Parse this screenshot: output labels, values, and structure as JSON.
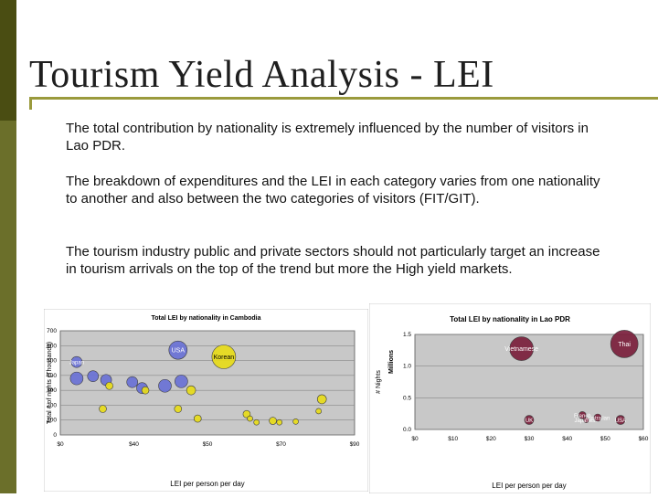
{
  "slide": {
    "title": "Tourism Yield Analysis - LEI",
    "paragraphs": [
      "The total contribution by nationality is extremely influenced by the number of visitors in Lao PDR.",
      "The breakdown of expenditures and the LEI in each category varies from one nationality to another and also between the two categories of visitors (FIT/GIT).",
      "The tourism industry public and private sectors should not particularly target an increase in tourism arrivals on the top of the trend but more the High yield markets."
    ]
  },
  "colors": {
    "sidebar": "#6b6f2a",
    "accent_rule": "#9a9a3c",
    "plot_gray": "#c8c8c8",
    "bubble_blue": "#6a72d6",
    "bubble_yellow": "#e8dc1a",
    "bubble_maroon": "#7a1f3c"
  },
  "chart_data": [
    {
      "type": "scatter",
      "title": "Total LEI by nationality in Cambodia",
      "xlabel": "LEI per person per day",
      "ylabel": "Total # of nights (Thousands)",
      "x_ticks": [
        "$0",
        "$40",
        "$50",
        "$70",
        "$90"
      ],
      "y_ticks": [
        "0",
        "100",
        "200",
        "300",
        "400",
        "500",
        "600",
        "700"
      ],
      "xlim": [
        0,
        90
      ],
      "ylim": [
        0,
        700
      ],
      "grid": true,
      "points": [
        {
          "label": "USA",
          "x": 36,
          "y": 570,
          "r": 10,
          "color": "#6a72d6"
        },
        {
          "label": "Korean",
          "x": 50,
          "y": 525,
          "r": 13,
          "color": "#e8dc1a"
        },
        {
          "label": "Japan",
          "x": 5,
          "y": 490,
          "r": 6,
          "color": "#6a72d6"
        },
        {
          "label": "",
          "x": 5,
          "y": 380,
          "r": 7,
          "color": "#6a72d6"
        },
        {
          "label": "",
          "x": 10,
          "y": 395,
          "r": 6,
          "color": "#6a72d6"
        },
        {
          "label": "",
          "x": 14,
          "y": 370,
          "r": 6,
          "color": "#6a72d6"
        },
        {
          "label": "",
          "x": 22,
          "y": 355,
          "r": 6,
          "color": "#6a72d6"
        },
        {
          "label": "",
          "x": 25,
          "y": 315,
          "r": 6,
          "color": "#6a72d6"
        },
        {
          "label": "",
          "x": 32,
          "y": 330,
          "r": 7,
          "color": "#6a72d6"
        },
        {
          "label": "",
          "x": 37,
          "y": 360,
          "r": 7,
          "color": "#6a72d6"
        },
        {
          "label": "",
          "x": 15,
          "y": 330,
          "r": 4,
          "color": "#e8dc1a"
        },
        {
          "label": "",
          "x": 26,
          "y": 300,
          "r": 4,
          "color": "#e8dc1a"
        },
        {
          "label": "",
          "x": 40,
          "y": 300,
          "r": 5,
          "color": "#e8dc1a"
        },
        {
          "label": "",
          "x": 13,
          "y": 175,
          "r": 4,
          "color": "#e8dc1a"
        },
        {
          "label": "",
          "x": 36,
          "y": 175,
          "r": 4,
          "color": "#e8dc1a"
        },
        {
          "label": "",
          "x": 42,
          "y": 110,
          "r": 4,
          "color": "#e8dc1a"
        },
        {
          "label": "",
          "x": 57,
          "y": 140,
          "r": 4,
          "color": "#e8dc1a"
        },
        {
          "label": "",
          "x": 58,
          "y": 110,
          "r": 3,
          "color": "#e8dc1a"
        },
        {
          "label": "",
          "x": 60,
          "y": 85,
          "r": 3,
          "color": "#e8dc1a"
        },
        {
          "label": "",
          "x": 65,
          "y": 95,
          "r": 4,
          "color": "#e8dc1a"
        },
        {
          "label": "",
          "x": 67,
          "y": 85,
          "r": 3,
          "color": "#e8dc1a"
        },
        {
          "label": "",
          "x": 72,
          "y": 90,
          "r": 3,
          "color": "#e8dc1a"
        },
        {
          "label": "",
          "x": 80,
          "y": 240,
          "r": 5,
          "color": "#e8dc1a"
        },
        {
          "label": "",
          "x": 79,
          "y": 160,
          "r": 3,
          "color": "#e8dc1a"
        }
      ]
    },
    {
      "type": "scatter",
      "title": "Total LEI by nationality in Lao PDR",
      "xlabel": "LEI per person per day",
      "ylabel": "# Nights",
      "yunit": "Millions",
      "x_ticks": [
        "$0",
        "$10",
        "$20",
        "$30",
        "$40",
        "$50",
        "$60"
      ],
      "y_ticks": [
        "0.0",
        "0.5",
        "1.0",
        "1.5"
      ],
      "xlim": [
        0,
        60
      ],
      "ylim": [
        0,
        2.0
      ],
      "grid": true,
      "points": [
        {
          "label": "Thai",
          "x": 55,
          "y": 1.8,
          "r": 15,
          "color": "#7a1f3c"
        },
        {
          "label": "Vietnamese",
          "x": 28,
          "y": 1.7,
          "r": 13,
          "color": "#7a1f3c"
        },
        {
          "label": "UK",
          "x": 30,
          "y": 0.2,
          "r": 5,
          "color": "#7a1f3c"
        },
        {
          "label": "French",
          "x": 44,
          "y": 0.3,
          "r": 4,
          "color": "#7a1f3c"
        },
        {
          "label": "Japanese",
          "x": 45,
          "y": 0.2,
          "r": 3,
          "color": "#7a1f3c"
        },
        {
          "label": "Australian",
          "x": 48,
          "y": 0.25,
          "r": 4,
          "color": "#7a1f3c"
        },
        {
          "label": "USA",
          "x": 54,
          "y": 0.2,
          "r": 5,
          "color": "#7a1f3c"
        }
      ]
    }
  ]
}
